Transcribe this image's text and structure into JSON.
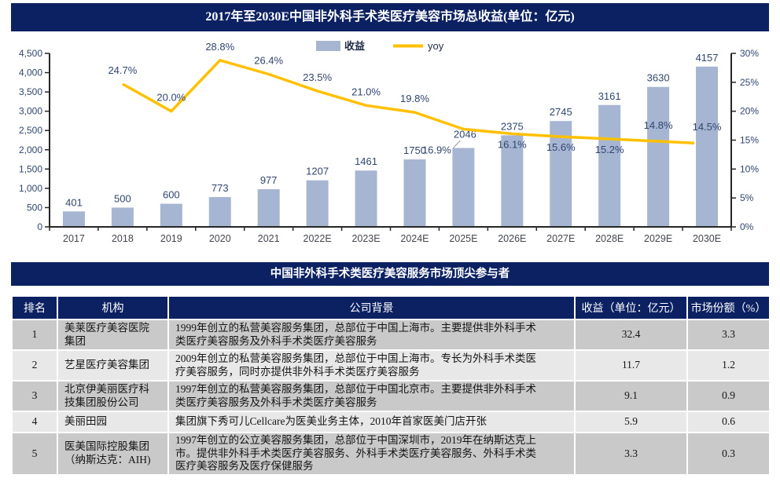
{
  "chart": {
    "title": "2017年至2030E中国非外科手术类医疗美容市场总收益(单位：亿元)",
    "legend": [
      {
        "label": "收益",
        "swatch": "bar"
      },
      {
        "label": "yoy",
        "swatch": "line"
      }
    ]
  },
  "chart_data": {
    "type": "bar",
    "title": "2017年至2030E中国非外科手术类医疗美容市场总收益(单位：亿元)",
    "categories": [
      "2017",
      "2018",
      "2019",
      "2020",
      "2021",
      "2022E",
      "2023E",
      "2024E",
      "2025E",
      "2026E",
      "2027E",
      "2028E",
      "2029E",
      "2030E"
    ],
    "series": [
      {
        "name": "收益",
        "type": "bar",
        "axis": "left",
        "values": [
          401,
          500,
          600,
          773,
          977,
          1207,
          1461,
          1750,
          2046,
          2375,
          2745,
          3161,
          3630,
          4157
        ]
      },
      {
        "name": "yoy",
        "type": "line",
        "axis": "right",
        "unit": "%",
        "values": [
          null,
          24.7,
          20.0,
          28.8,
          26.4,
          23.5,
          21.0,
          19.8,
          16.9,
          16.1,
          15.6,
          15.2,
          14.8,
          14.5
        ]
      }
    ],
    "yoy_labels": [
      "",
      "24.7%",
      "20.0%",
      "28.8%",
      "26.4%",
      "23.5%",
      "21.0%",
      "19.8%",
      "16.9%",
      "16.1%",
      "15.6%",
      "15.2%",
      "14.8%",
      "14.5%"
    ],
    "left_axis": {
      "min": 0,
      "max": 4500,
      "step": 500,
      "ticks": [
        "0",
        "500",
        "1,000",
        "1,500",
        "2,000",
        "2,500",
        "3,000",
        "3,500",
        "4,000",
        "4,500"
      ]
    },
    "right_axis": {
      "min": 0,
      "max": 30,
      "step": 5,
      "ticks": [
        "0%",
        "5%",
        "10%",
        "15%",
        "20%",
        "25%",
        "30%"
      ]
    },
    "grid": false,
    "legend_position": "top-center"
  },
  "colors": {
    "navy": "#0c2161",
    "bar_fill": "#a6b5d2",
    "yoy_line": "#ffc000",
    "chart_text": "#31466e",
    "x_label": "#43464f",
    "axis_line": "#262626",
    "leader_line": "#9a9a9a",
    "row_odd": "#c9c9c9",
    "row_even": "#e8e8e8"
  },
  "table": {
    "title": "中国非外科手术类医疗美容服务市场顶尖参与者",
    "columns": [
      "排名",
      "机构",
      "公司背景",
      "收益（单位：亿元）",
      "市场份额（%）"
    ],
    "rows": [
      {
        "rank": "1",
        "org": "美莱医疗美容医院\n集团",
        "background": "1999年创立的私营美容服务集团，总部位于中国上海市。主要提供非外科手术\n类医疗美容服务及外科手术类医疗美容服务",
        "revenue": "32.4",
        "share": "3.3"
      },
      {
        "rank": "2",
        "org": "艺星医疗美容集团",
        "background": "2009年创立的私营美容服务集团，总部位于中国上海市。专长为外科手术类医\n疗美容服务，同时亦提供非外科手术类医疗美容服务",
        "revenue": "11.7",
        "share": "1.2"
      },
      {
        "rank": "3",
        "org": "北京伊美丽医疗科\n技集团股份公司",
        "background": "1997年创立的私营美容服务集团，总部位于中国北京市。主要提供非外科手术\n类医疗美容服务及外科手术类医疗美容服务",
        "revenue": "9.1",
        "share": "0.9"
      },
      {
        "rank": "4",
        "org": "美丽田园",
        "background": "集团旗下秀可儿Cellcare为医美业务主体，2010年首家医美门店开张",
        "revenue": "5.9",
        "share": "0.6"
      },
      {
        "rank": "5",
        "org": "医美国际控股集团\n（纳斯达克：AIH)",
        "background": "1997年创立的公立美容服务集团，总部位于中国深圳市，2019年在纳斯达克上\n市。提供非外科手术类医疗美容服务、外科手术类医疗美容服务、外科手术类\n医疗美容服务及医疗保健服务",
        "revenue": "3.3",
        "share": "0.3"
      }
    ]
  }
}
